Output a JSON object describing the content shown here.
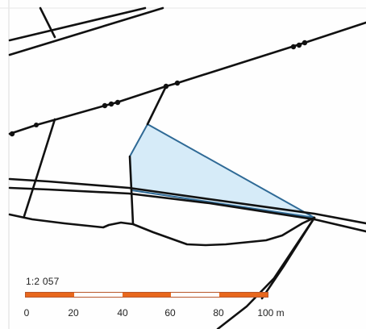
{
  "map": {
    "scale_ratio": "1:2 057",
    "scale_ticks": [
      "0",
      "20",
      "40",
      "60",
      "80",
      "100 m"
    ],
    "scale_segment_colors": [
      "#e8671c",
      "#ffffff",
      "#e8671c",
      "#ffffff",
      "#e8671c"
    ],
    "parcel_fill": "#d6ebf8",
    "parcel_stroke": "#2f6a96",
    "line_color": "#111111"
  }
}
